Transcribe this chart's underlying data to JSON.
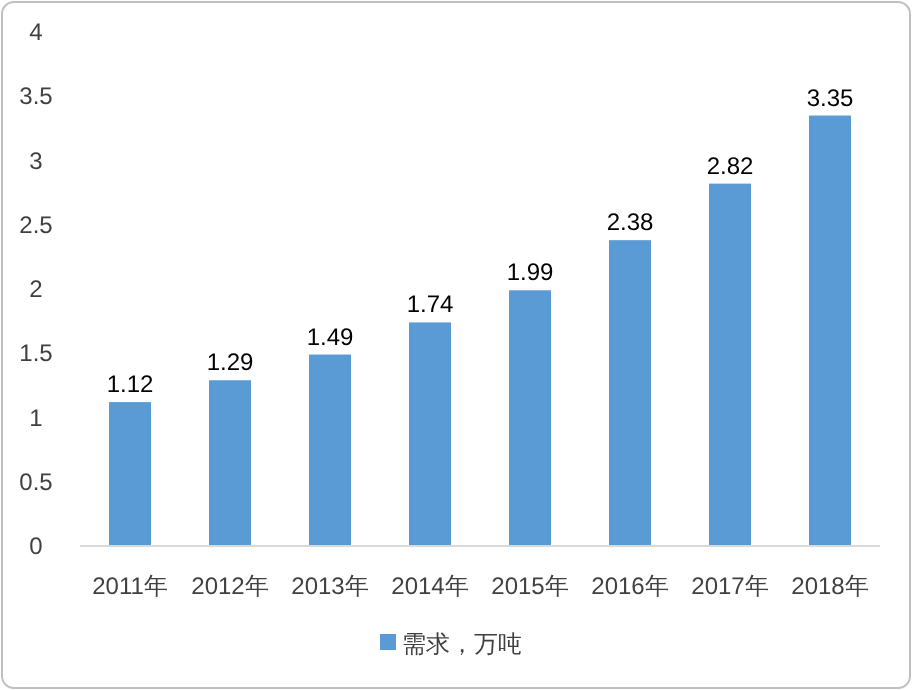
{
  "chart_data": {
    "type": "bar",
    "categories": [
      "2011年",
      "2012年",
      "2013年",
      "2014年",
      "2015年",
      "2016年",
      "2017年",
      "2018年"
    ],
    "series": [
      {
        "name": "需求，万吨",
        "color": "#5b9bd5",
        "values": [
          1.12,
          1.29,
          1.49,
          1.74,
          1.99,
          2.38,
          2.82,
          3.35
        ]
      }
    ],
    "ylim": [
      0,
      4
    ],
    "yticks": [
      0,
      0.5,
      1,
      1.5,
      2,
      2.5,
      3,
      3.5,
      4
    ],
    "data_labels": true,
    "grid": false,
    "legend": "bottom"
  }
}
